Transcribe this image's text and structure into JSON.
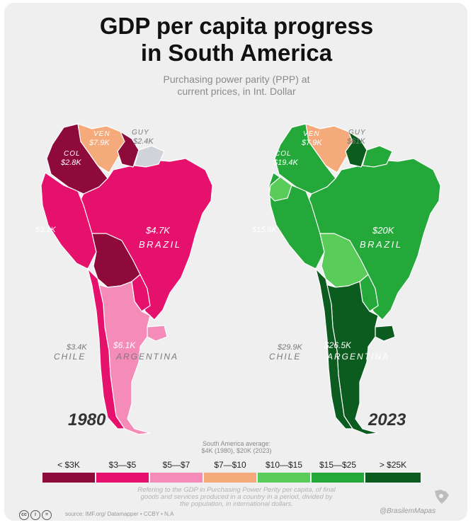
{
  "title_line1": "GDP per capita progress",
  "title_line2": "in South America",
  "subtitle_line1": "Purchasing power parity (PPP) at",
  "subtitle_line2": "current prices, in Int. Dollar",
  "maps": {
    "1980": {
      "year": "1980",
      "ven": "VEN",
      "ven_val": "$7.9K",
      "guy": "GUY",
      "guy_val": "$2.4K",
      "col": "COL",
      "col_val": "$2.8K",
      "peru_val": "$3.1K",
      "brazil_val": "$4.7K",
      "brazil": "BRAZIL",
      "chile_val": "$3.4K",
      "chile": "CHILE",
      "arg_val": "$6.1K",
      "arg": "ARGENTINA"
    },
    "2023": {
      "year": "2023",
      "ven": "VEN",
      "ven_val": "$7.9K",
      "guy": "GUY",
      "guy_val": "$61K",
      "col": "COL",
      "col_val": "$19.4K",
      "peru_val": "$15.8K",
      "brazil_val": "$20K",
      "brazil": "BRAZIL",
      "chile_val": "$29.9K",
      "chile": "CHILE",
      "arg_val": "$26.5K",
      "arg": "ARGENTINA"
    }
  },
  "colors": {
    "lt3": "#8e0a3a",
    "b3_5": "#e6116d",
    "b5_7": "#f58bb8",
    "b7_10": "#f4aa7a",
    "b10_15": "#59cc59",
    "b15_25": "#25a83a",
    "gt25": "#0b5c1e",
    "nodata": "#d0d4da"
  },
  "average_line1": "South America average:",
  "average_line2": "$4K (1980), $20K (2023)",
  "legend": [
    {
      "label": "< $3K",
      "color": "#8e0a3a"
    },
    {
      "label": "$3—$5",
      "color": "#e6116d"
    },
    {
      "label": "$5—$7",
      "color": "#f58bb8"
    },
    {
      "label": "$7—$10",
      "color": "#f4aa7a"
    },
    {
      "label": "$10—$15",
      "color": "#59cc59"
    },
    {
      "label": "$15—$25",
      "color": "#25a83a"
    },
    {
      "label": "> $25K",
      "color": "#0b5c1e"
    }
  ],
  "footnote_line1": "Refering to the GDP in Purchasing Power Perity per capita, of final",
  "footnote_line2": "goods and services produced in a country in a period, divided by",
  "footnote_line3": "the population, in international dollars.",
  "source": "source: IMF.org/ Datamapper • CCBY • N.A",
  "brand": "@BrasilemMapas"
}
